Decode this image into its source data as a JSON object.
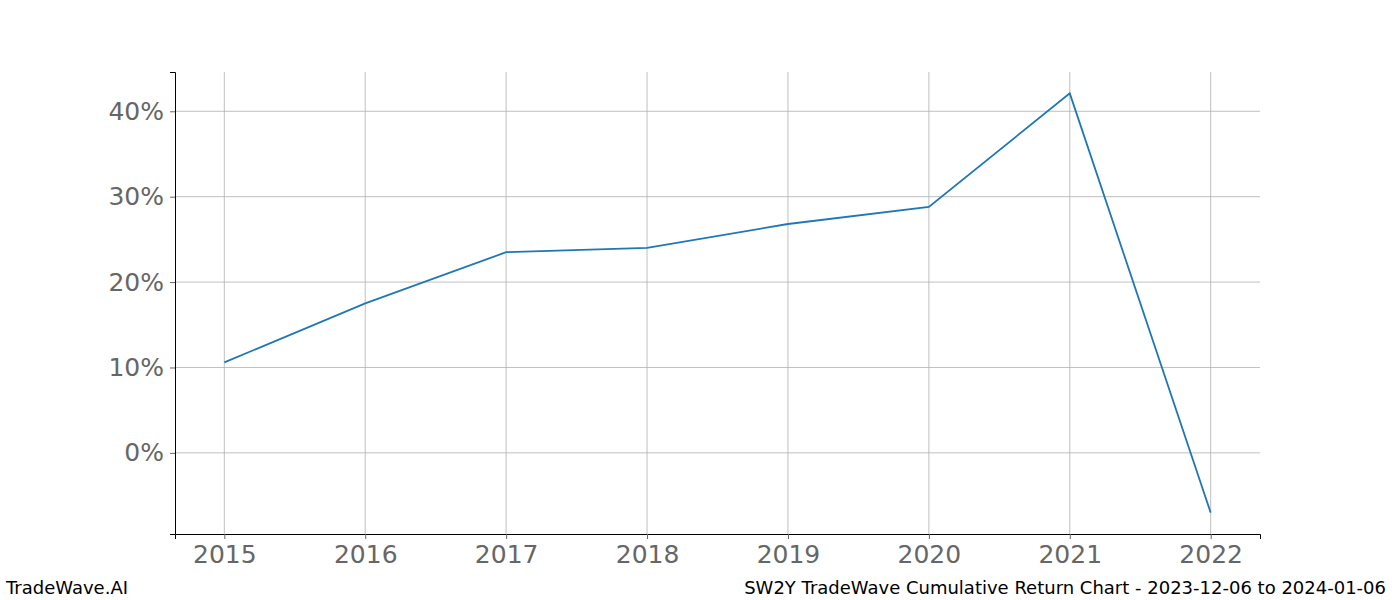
{
  "chart_data": {
    "type": "line",
    "title": "SW2Y TradeWave Cumulative Return Chart - 2023-12-06 to 2024-01-06",
    "annotations": [
      "TradeWave.AI"
    ],
    "x": [
      2015,
      2016,
      2017,
      2018,
      2019,
      2020,
      2021,
      2022
    ],
    "values": [
      10.6,
      17.5,
      23.5,
      24.0,
      26.8,
      28.8,
      42.1,
      -7.0
    ],
    "color": "#1f77b4",
    "xlim": [
      2014.65,
      2022.35
    ],
    "xticks": [
      2015,
      2016,
      2017,
      2018,
      2019,
      2020,
      2021,
      2022
    ],
    "ylim": [
      -9.5,
      44.6
    ],
    "yticks": [
      {
        "value": 0,
        "label": "0%"
      },
      {
        "value": 10,
        "label": "10%"
      },
      {
        "value": 20,
        "label": "20%"
      },
      {
        "value": 30,
        "label": "30%"
      },
      {
        "value": 40,
        "label": "40%"
      }
    ],
    "grid": true
  }
}
